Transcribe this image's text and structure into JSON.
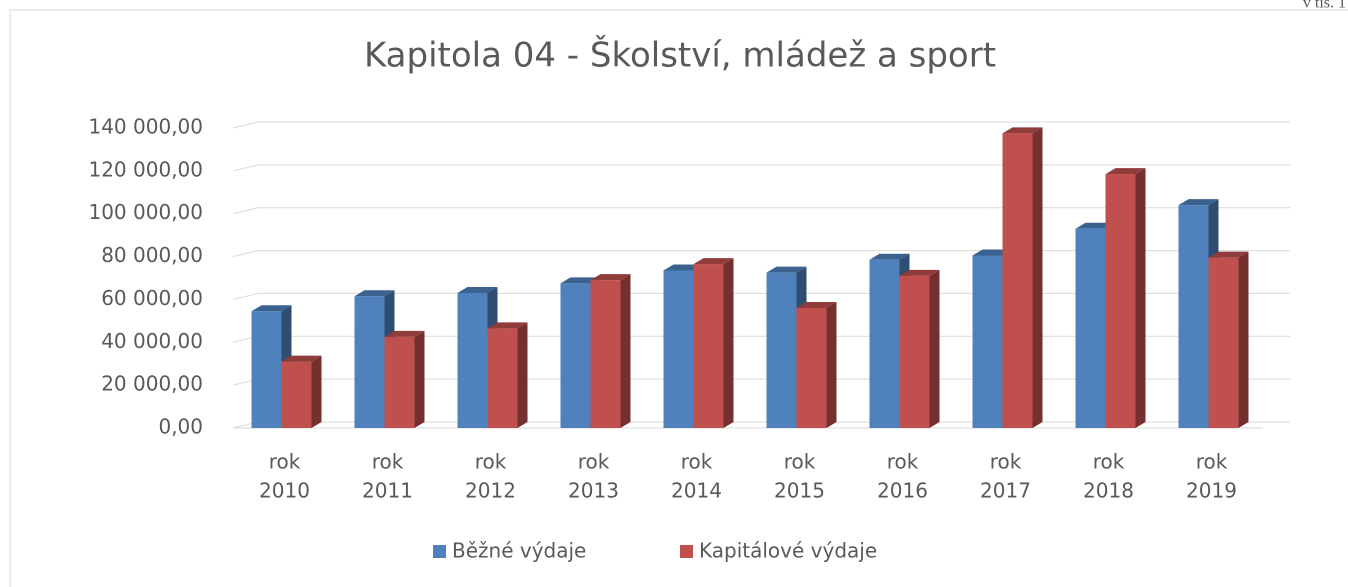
{
  "chart_data": {
    "type": "bar3d",
    "title": "Kapitola 04 - Školství, mládež a sport",
    "annotation": "v tis. 1",
    "categories": [
      [
        "rok",
        "2010"
      ],
      [
        "rok",
        "2011"
      ],
      [
        "rok",
        "2012"
      ],
      [
        "rok",
        "2013"
      ],
      [
        "rok",
        "2014"
      ],
      [
        "rok",
        "2015"
      ],
      [
        "rok",
        "2016"
      ],
      [
        "rok",
        "2017"
      ],
      [
        "rok",
        "2018"
      ],
      [
        "rok",
        "2019"
      ]
    ],
    "series": [
      {
        "name": "Běžné výdaje",
        "color": "#4f81bd",
        "values": [
          54500,
          61500,
          63000,
          67500,
          73500,
          72500,
          78500,
          80500,
          93000,
          104000
        ]
      },
      {
        "name": "Kapitálové výdaje",
        "color": "#c0504d",
        "values": [
          31000,
          42500,
          46500,
          69000,
          76500,
          56000,
          71000,
          137500,
          118500,
          79500
        ]
      }
    ],
    "ylim": [
      0,
      140000
    ],
    "yticks": [
      {
        "value": 0,
        "label": "0,00"
      },
      {
        "value": 20000,
        "label": "20 000,00"
      },
      {
        "value": 40000,
        "label": "40 000,00"
      },
      {
        "value": 60000,
        "label": "60 000,00"
      },
      {
        "value": 80000,
        "label": "80 000,00"
      },
      {
        "value": 100000,
        "label": "100 000,00"
      },
      {
        "value": 120000,
        "label": "120 000,00"
      },
      {
        "value": 140000,
        "label": "140 000,00"
      }
    ],
    "grid": true,
    "legend": "bottom"
  }
}
